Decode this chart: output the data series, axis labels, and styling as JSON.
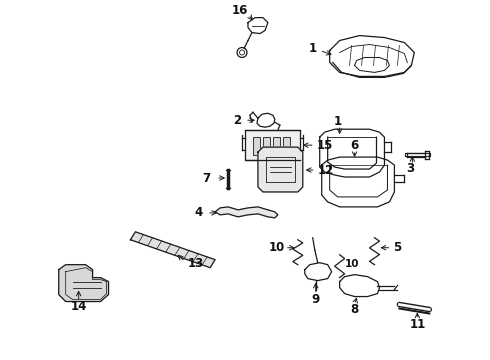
{
  "background_color": "#ffffff",
  "line_color": "#1a1a1a",
  "figsize": [
    4.9,
    3.6
  ],
  "dpi": 100,
  "text_color": "#111111",
  "font_size": 8.5,
  "font_size_small": 7.5
}
